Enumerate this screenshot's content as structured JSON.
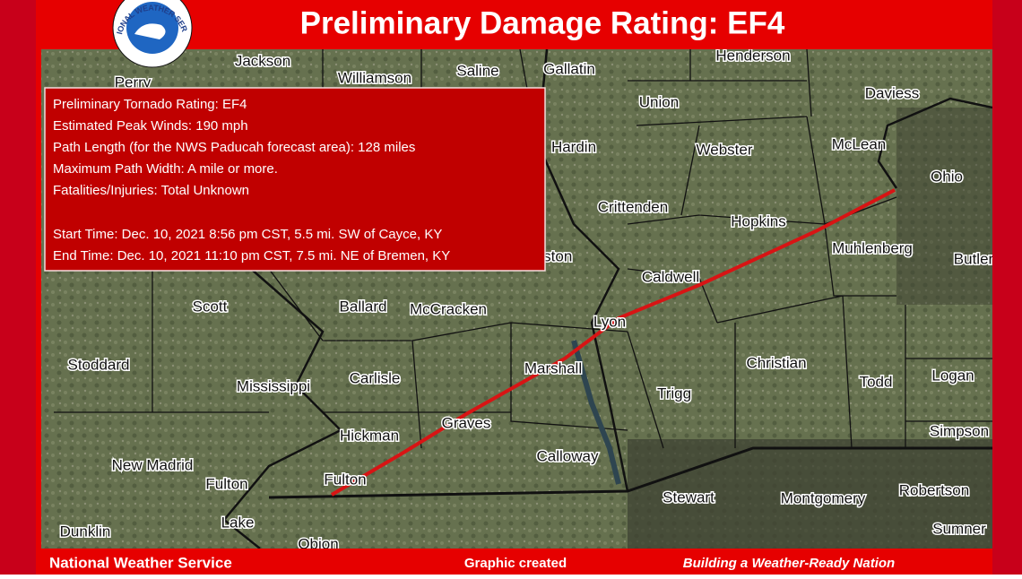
{
  "header": {
    "title": "Preliminary Damage Rating: EF4",
    "logo_text": "NATIONAL WEATHER SERVICE"
  },
  "info_box": {
    "lines": [
      "Preliminary Tornado Rating: EF4",
      "Estimated Peak Winds: 190 mph",
      "Path Length (for the NWS Paducah forecast area): 128 miles",
      "Maximum Path Width: A mile or more.",
      "Fatalities/Injuries: Total Unknown"
    ],
    "times": [
      "Start Time: Dec. 10, 2021 8:56 pm CST, 5.5 mi. SW of Cayce, KY",
      "End Time: Dec. 10, 2021 11:10 pm CST, 7.5 mi. NE of Bremen, KY"
    ]
  },
  "map": {
    "counties": [
      "Jackson",
      "Williamson",
      "Saline",
      "Gallatin",
      "Henderson",
      "Daviess",
      "Perry",
      "Union",
      "Hardin",
      "Webster",
      "McLean",
      "Ohio",
      "Crittenden",
      "Hopkins",
      "Muhlenberg",
      "Butler",
      "Livingston",
      "Caldwell",
      "Scott",
      "Ballard",
      "McCracken",
      "Lyon",
      "Stoddard",
      "Carlisle",
      "Marshall",
      "Christian",
      "Logan",
      "Mississippi",
      "Trigg",
      "Todd",
      "Graves",
      "Hickman",
      "Simpson",
      "New Madrid",
      "Calloway",
      "Fulton",
      "Fulton",
      "Stewart",
      "Montgomery",
      "Robertson",
      "Lake",
      "Dunklin",
      "Obion",
      "Sumner"
    ]
  },
  "footer": {
    "left": "National Weather Service",
    "center": "Graphic created",
    "right": "Building a Weather-Ready Nation"
  }
}
